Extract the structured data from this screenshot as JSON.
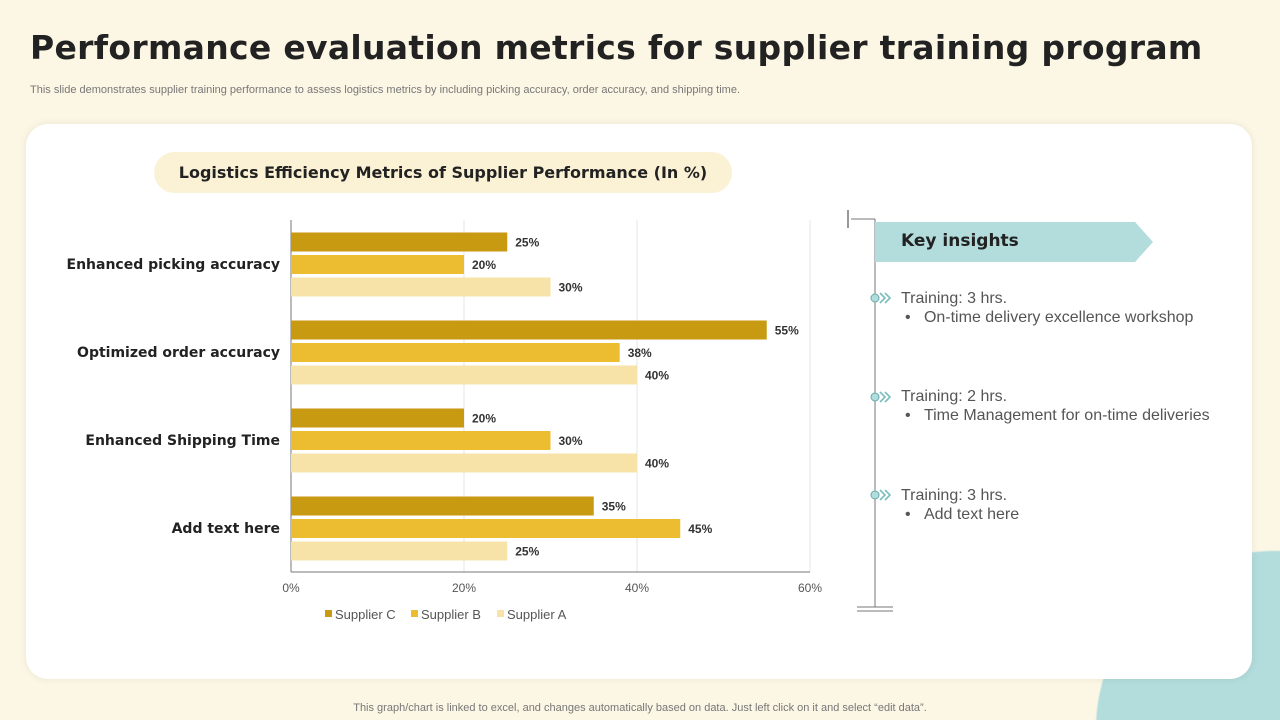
{
  "title": "Performance evaluation metrics for supplier training program",
  "subtitle": "This slide demonstrates supplier training performance to assess logistics metrics by including picking accuracy, order accuracy, and shipping time.",
  "footer": "This graph/chart is linked to excel, and changes automatically based on data. Just left click on it and select “edit data”.",
  "chart_data": {
    "type": "bar",
    "orientation": "horizontal",
    "title": "Logistics Efficiency Metrics of Supplier Performance (In %)",
    "categories": [
      "Enhanced picking accuracy",
      "Optimized order accuracy",
      "Enhanced Shipping Time",
      "Add text here"
    ],
    "series": [
      {
        "name": "Supplier C",
        "color": "#c89a12",
        "values": [
          25,
          55,
          20,
          35
        ]
      },
      {
        "name": "Supplier B",
        "color": "#ecbd30",
        "values": [
          20,
          38,
          30,
          45
        ]
      },
      {
        "name": "Supplier A",
        "color": "#f7e3a8",
        "values": [
          30,
          40,
          40,
          25
        ]
      }
    ],
    "xlim": [
      0,
      60
    ],
    "xticks": [
      "0%",
      "20%",
      "40%",
      "60%"
    ],
    "grid": true,
    "legend": "bottom"
  },
  "insights": {
    "heading": "Key insights",
    "items": [
      {
        "title": "Training: 3 hrs.",
        "bullet": "On-time delivery excellence workshop"
      },
      {
        "title": "Training: 2 hrs.",
        "bullet": "Time Management for on-time deliveries"
      },
      {
        "title": "Training: 3 hrs.",
        "bullet": "Add text here"
      }
    ]
  }
}
